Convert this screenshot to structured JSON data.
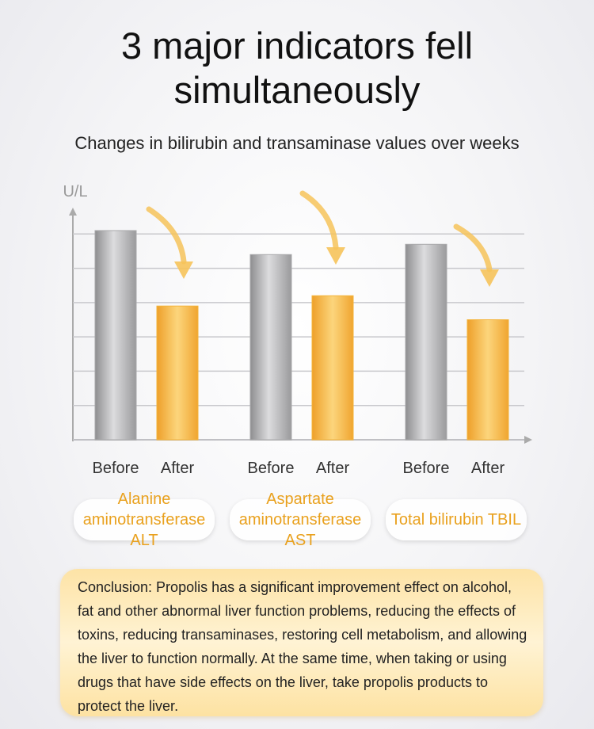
{
  "chart_data": {
    "type": "bar",
    "title": "3 major indicators fell simultaneously",
    "subtitle": "Changes in bilirubin and transaminase values over weeks",
    "y_label": "U/L",
    "categories": [
      "Alanine aminotransferase ALT",
      "Aspartate aminotransferase AST",
      "Total bilirubin TBIL"
    ],
    "series": [
      {
        "name": "Before",
        "color": "#a9a9ab",
        "values": [
          6.1,
          5.4,
          5.7
        ]
      },
      {
        "name": "After",
        "color": "#f4b43a",
        "values": [
          3.9,
          4.2,
          3.5
        ]
      }
    ],
    "ylim": [
      0,
      6.7
    ],
    "yticks": [
      0,
      1,
      2,
      3,
      4,
      5,
      6
    ],
    "grid": true,
    "annotation": "Conclusion: Propolis has a significant improvement effect on alcohol, fat and other abnormal liver function problems, reducing the effects of toxins, reducing transaminases, restoring cell metabolism, and allowing the liver to function normally. At the same time, when taking or using drugs that have side effects on the liver, take propolis products to protect the liver."
  }
}
